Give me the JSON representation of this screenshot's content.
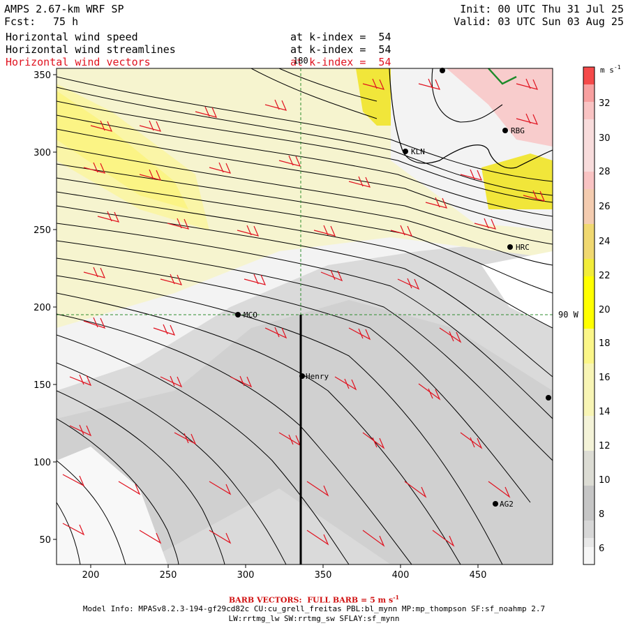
{
  "header": {
    "title": "AMPS 2.67-km WRF SP",
    "fcst_label": "Fcst:",
    "fcst_value": "75 h",
    "init": "Init: 00 UTC Thu 31 Jul 25",
    "valid": "Valid: 03 UTC Sun 03 Aug 25",
    "fields": [
      {
        "name": "Horizontal wind speed",
        "level": "at k-index =  54"
      },
      {
        "name": "Horizontal wind streamlines",
        "level": "at k-index =  54"
      },
      {
        "name": "Horizontal wind vectors",
        "level": "at k-index =  54"
      }
    ]
  },
  "map": {
    "x_ticks": [
      "200",
      "250",
      "300",
      "350",
      "400",
      "450"
    ],
    "y_ticks": [
      "350",
      "300",
      "250",
      "200",
      "150",
      "100",
      "50"
    ],
    "meridian_label": "180",
    "parallel_label": "90 W",
    "stations": [
      {
        "name": "KLN"
      },
      {
        "name": "RBG"
      },
      {
        "name": "HRC"
      },
      {
        "name": "MCO"
      },
      {
        "name": "Henry"
      },
      {
        "name": "AG2"
      }
    ]
  },
  "colorbar": {
    "unit": "m s",
    "unit_exp": "-1",
    "labels": [
      "32",
      "30",
      "28",
      "26",
      "24",
      "22",
      "20",
      "18",
      "16",
      "14",
      "12",
      "10",
      "8",
      "6"
    ],
    "colors": [
      "#f54a4a",
      "#f8a0a0",
      "#f9c3c3",
      "#f8dcdc",
      "#f4ccb0",
      "#f0d870",
      "#f2ec3a",
      "#ffff00",
      "#fbf688",
      "#f8f5b5",
      "#f4f3d8",
      "#dcdcd4",
      "#c6c6c6",
      "#d7d7d7",
      "#e8e8e8",
      "#f6f6f6"
    ]
  },
  "footer": {
    "barb_note": "BARB VECTORS:  FULL BARB = 5 m s",
    "barb_exp": "-1",
    "model_info_1": "Model Info: MPASv8.2.3-194-gf29cd82c CU:cu_grell_freitas PBL:bl_mynn MP:mp_thompson SF:sf_noahmp 2.7",
    "model_info_2": "LW:rrtmg_lw SW:rrtmg_sw SFLAY:sf_mynn"
  }
}
